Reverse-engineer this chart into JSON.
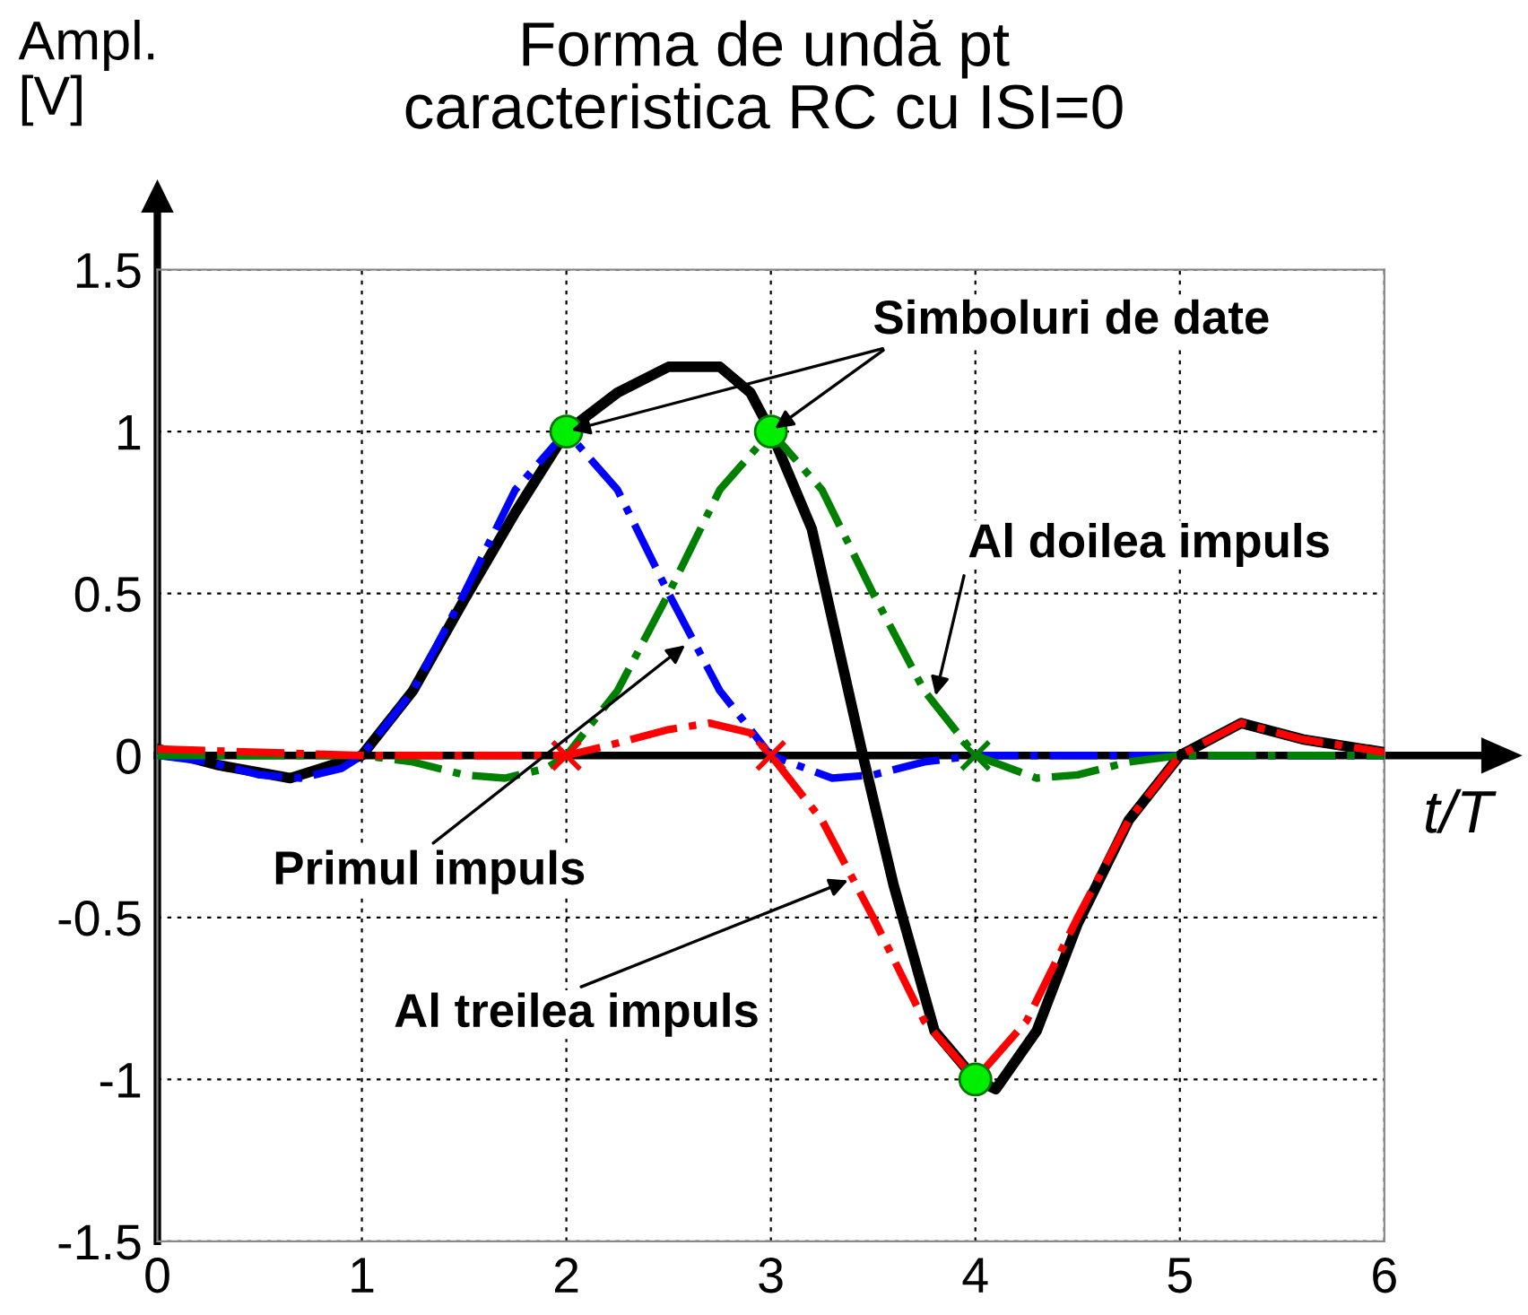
{
  "chart_data": {
    "type": "line",
    "title": "Forma de undă pt\ncaracteristica RC cu ISI=0",
    "ylabel": "Ampl.\n[V]",
    "xlabel": "t/T",
    "xlim": [
      0,
      6
    ],
    "ylim": [
      -1.5,
      1.5
    ],
    "xticks": [
      0,
      1,
      2,
      3,
      4,
      5,
      6
    ],
    "yticks": [
      -1.5,
      -1,
      -0.5,
      0,
      0.5,
      1,
      1.5
    ],
    "grid": true,
    "marker": "none",
    "series": [
      {
        "color": "#0000ff",
        "line_style": "dashdot",
        "x": [
          0,
          0.25,
          0.5,
          0.7,
          0.9,
          1,
          1.25,
          1.5,
          1.75,
          2,
          2.25,
          2.5,
          2.75,
          3,
          3.3,
          3.5,
          3.75,
          4,
          4.5,
          5,
          6
        ],
        "values": [
          0.0,
          -0.02,
          -0.06,
          -0.07,
          -0.04,
          0,
          0.2,
          0.5,
          0.82,
          1,
          0.82,
          0.5,
          0.2,
          0,
          -0.07,
          -0.06,
          -0.02,
          0,
          0,
          0,
          0
        ]
      },
      {
        "color": "#008000",
        "line_style": "dashdot",
        "x": [
          0,
          1,
          1.25,
          1.5,
          1.7,
          1.9,
          2,
          2.25,
          2.5,
          2.75,
          3,
          3.25,
          3.5,
          3.75,
          4,
          4.3,
          4.5,
          4.75,
          5,
          6
        ],
        "values": [
          0,
          0,
          -0.02,
          -0.06,
          -0.07,
          -0.04,
          0,
          0.2,
          0.5,
          0.82,
          1,
          0.82,
          0.5,
          0.2,
          0,
          -0.07,
          -0.06,
          -0.02,
          0,
          0
        ]
      },
      {
        "color": "#ff0000",
        "line_style": "dashdot",
        "x": [
          0,
          1,
          2,
          2.2,
          2.5,
          2.7,
          2.9,
          3,
          3.25,
          3.5,
          3.75,
          4,
          4.25,
          4.5,
          4.75,
          5,
          5.3,
          5.6,
          6
        ],
        "values": [
          0.02,
          0,
          0,
          0.03,
          0.08,
          0.1,
          0.07,
          0,
          -0.2,
          -0.5,
          -0.82,
          -1,
          -0.82,
          -0.5,
          -0.2,
          0,
          0.1,
          0.05,
          0.01
        ]
      },
      {
        "color": "#000000",
        "line_style": "solid",
        "x": [
          0,
          0.3,
          0.65,
          1,
          1.25,
          1.5,
          1.75,
          2,
          2.25,
          2.5,
          2.75,
          2.9,
          3,
          3.2,
          3.45,
          3.6,
          3.8,
          4,
          4.1,
          4.3,
          4.5,
          4.75,
          5,
          5.3,
          5.6,
          6
        ],
        "values": [
          0.02,
          -0.03,
          -0.07,
          0,
          0.2,
          0.48,
          0.75,
          1,
          1.12,
          1.2,
          1.2,
          1.12,
          1,
          0.7,
          0,
          -0.4,
          -0.85,
          -1,
          -1.03,
          -0.85,
          -0.52,
          -0.2,
          0,
          0.1,
          0.05,
          0.01
        ]
      },
      {
        "type": "scatter",
        "marker": "cross",
        "colors": [
          "#ff0000",
          "#ff0000",
          "#008000"
        ],
        "x": [
          2,
          3,
          4
        ],
        "values": [
          0,
          0,
          0
        ]
      },
      {
        "type": "scatter",
        "marker": "circle",
        "color": "#00ee00",
        "x": [
          2,
          3,
          4
        ],
        "values": [
          1,
          1,
          -1
        ]
      }
    ],
    "annotations": [
      {
        "text": "Simboluri de date",
        "x": 3,
        "y": 1
      },
      {
        "text": "Al doilea impuls",
        "x": 3.8,
        "y": 0.17
      },
      {
        "text": "Primul impuls",
        "x": 2.6,
        "y": 0.35
      },
      {
        "text": "Al treilea impuls",
        "x": 3.4,
        "y": -0.38
      }
    ]
  }
}
